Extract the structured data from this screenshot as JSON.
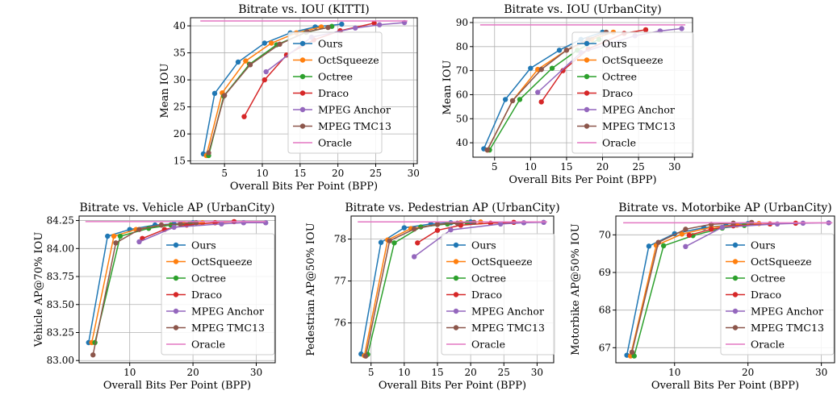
{
  "colors": {
    "Ours": "#1f77b4",
    "OctSqueeze": "#ff7f0e",
    "Octree": "#2ca02c",
    "Draco": "#d62728",
    "MPEG Anchor": "#9467bd",
    "MPEG TMC13": "#8c564b",
    "Oracle": "#e377c2"
  },
  "chart_data": [
    {
      "type": "line",
      "title": "Bitrate vs. IOU (KITTI)",
      "xlabel": "Overall Bits Per Point (BPP)",
      "ylabel": "Mean IOU",
      "xlim": [
        0.5,
        30.5
      ],
      "ylim": [
        14.5,
        41.5
      ],
      "xticks": [
        5,
        10,
        15,
        20,
        25,
        30
      ],
      "yticks": [
        15,
        20,
        25,
        30,
        35,
        40
      ],
      "yticklabels": [
        "15",
        "20",
        "25",
        "30",
        "35",
        "40"
      ],
      "grid": true,
      "legend": "lower-right",
      "series": [
        {
          "name": "Ours",
          "x": [
            2.2,
            3.7,
            6.8,
            10.3,
            13.7,
            17.0,
            20.5
          ],
          "y": [
            16.3,
            27.5,
            33.3,
            36.8,
            38.7,
            39.8,
            40.3
          ]
        },
        {
          "name": "OctSqueeze",
          "x": [
            2.6,
            4.7,
            7.8,
            11.2,
            14.5,
            17.8
          ],
          "y": [
            16.0,
            27.6,
            33.5,
            36.8,
            38.7,
            39.8
          ]
        },
        {
          "name": "Octree",
          "x": [
            2.9,
            4.9,
            8.3,
            11.9,
            15.8,
            19.2
          ],
          "y": [
            16.0,
            27.0,
            32.9,
            36.5,
            38.8,
            39.9
          ]
        },
        {
          "name": "Draco",
          "x": [
            7.6,
            10.3,
            13.2,
            16.8,
            20.3,
            24.8
          ],
          "y": [
            23.2,
            30.0,
            34.6,
            37.4,
            39.1,
            40.5
          ]
        },
        {
          "name": "MPEG Anchor",
          "x": [
            10.5,
            16.5,
            22.3,
            25.5,
            28.8
          ],
          "y": [
            31.5,
            37.9,
            39.6,
            40.2,
            40.6
          ]
        },
        {
          "name": "MPEG TMC13",
          "x": [
            2.9,
            5.0,
            8.4,
            12.3,
            15.9,
            18.7
          ],
          "y": [
            16.5,
            27.1,
            32.8,
            36.6,
            38.9,
            39.7
          ]
        },
        {
          "name": "Oracle",
          "x": [
            1.8,
            29.2
          ],
          "y": [
            40.9,
            40.9
          ],
          "markers": false
        }
      ]
    },
    {
      "type": "line",
      "title": "Bitrate vs. IOU (UrbanCity)",
      "xlabel": "Overall Bits Per Point (BPP)",
      "ylabel": "Mean IOU",
      "xlim": [
        2.0,
        32.5
      ],
      "ylim": [
        34.0,
        92.0
      ],
      "xticks": [
        5,
        10,
        15,
        20,
        25,
        30
      ],
      "yticks": [
        40,
        50,
        60,
        70,
        80,
        90
      ],
      "yticklabels": [
        "40",
        "50",
        "60",
        "70",
        "80",
        "90"
      ],
      "grid": true,
      "legend": "lower-right",
      "series": [
        {
          "name": "Ours",
          "x": [
            3.5,
            6.5,
            10.0,
            14.0,
            17.0,
            20.0
          ],
          "y": [
            37.5,
            58.0,
            71.0,
            78.5,
            83.0,
            86.0
          ]
        },
        {
          "name": "OctSqueeze",
          "x": [
            4.0,
            7.5,
            11.0,
            15.0,
            18.5,
            21.5
          ],
          "y": [
            37.0,
            57.5,
            70.5,
            78.5,
            83.0,
            86.0
          ]
        },
        {
          "name": "Octree",
          "x": [
            4.3,
            8.5,
            13.0,
            16.5,
            19.5
          ],
          "y": [
            37.0,
            58.0,
            71.0,
            78.5,
            83.0
          ]
        },
        {
          "name": "Draco",
          "x": [
            11.5,
            14.5,
            18.0,
            23.0,
            26.0
          ],
          "y": [
            57.0,
            70.0,
            79.0,
            85.5,
            87.0
          ]
        },
        {
          "name": "MPEG Anchor",
          "x": [
            11.0,
            17.0,
            24.5,
            28.0,
            31.0
          ],
          "y": [
            61.0,
            77.5,
            84.5,
            86.5,
            87.5
          ]
        },
        {
          "name": "MPEG TMC13",
          "x": [
            4.0,
            7.5,
            11.5,
            15.0,
            18.0,
            20.5
          ],
          "y": [
            37.0,
            57.5,
            70.5,
            78.5,
            83.0,
            86.0
          ]
        },
        {
          "name": "Oracle",
          "x": [
            3.0,
            31.5
          ],
          "y": [
            89.0,
            89.0
          ],
          "markers": false
        }
      ]
    },
    {
      "type": "line",
      "title": "Bitrate vs. Vehicle AP (UrbanCity)",
      "xlabel": "Overall Bits Per Point (BPP)",
      "ylabel": "Vehicle AP@70% IOU",
      "xlim": [
        2.0,
        33.0
      ],
      "ylim": [
        82.98,
        84.29
      ],
      "xticks": [
        10,
        20,
        30
      ],
      "yticks": [
        83.0,
        83.25,
        83.5,
        83.75,
        84.0,
        84.25
      ],
      "yticklabels": [
        "83.00",
        "83.25",
        "83.50",
        "83.75",
        "84.00",
        "84.25"
      ],
      "grid": true,
      "legend": "lower-right",
      "series": [
        {
          "name": "Ours",
          "x": [
            3.5,
            6.5,
            10.0,
            14.0,
            17.0,
            20.0
          ],
          "y": [
            83.16,
            84.11,
            84.17,
            84.21,
            84.22,
            84.23
          ]
        },
        {
          "name": "OctSqueeze",
          "x": [
            4.0,
            7.5,
            11.0,
            15.0,
            18.5,
            21.5
          ],
          "y": [
            83.16,
            84.11,
            84.17,
            84.21,
            84.22,
            84.23
          ]
        },
        {
          "name": "Octree",
          "x": [
            4.5,
            8.5,
            13.0,
            16.5,
            19.5
          ],
          "y": [
            83.16,
            84.11,
            84.18,
            84.21,
            84.22
          ]
        },
        {
          "name": "Draco",
          "x": [
            12.0,
            15.5,
            19.0,
            23.5,
            26.5
          ],
          "y": [
            84.09,
            84.17,
            84.21,
            84.23,
            84.24
          ]
        },
        {
          "name": "MPEG Anchor",
          "x": [
            11.5,
            17.0,
            24.5,
            28.0,
            31.5
          ],
          "y": [
            84.06,
            84.19,
            84.22,
            84.23,
            84.23
          ]
        },
        {
          "name": "MPEG TMC13",
          "x": [
            4.2,
            7.8,
            11.5,
            15.0,
            18.0,
            20.5
          ],
          "y": [
            83.05,
            84.05,
            84.17,
            84.21,
            84.22,
            84.23
          ]
        },
        {
          "name": "Oracle",
          "x": [
            3.0,
            31.5
          ],
          "y": [
            84.24,
            84.24
          ],
          "markers": false
        }
      ]
    },
    {
      "type": "line",
      "title": "Bitrate vs. Pedestrian AP (UrbanCity)",
      "xlabel": "Overall Bits Per Point (BPP)",
      "ylabel": "Pedestrian AP@50% IOU",
      "xlim": [
        2.0,
        32.5
      ],
      "ylim": [
        75.05,
        78.55
      ],
      "xticks": [
        5,
        10,
        15,
        20,
        25,
        30
      ],
      "yticks": [
        76,
        77,
        78
      ],
      "yticklabels": [
        "76",
        "77",
        "78"
      ],
      "grid": true,
      "legend": "lower-right",
      "series": [
        {
          "name": "Ours",
          "x": [
            3.5,
            6.5,
            10.0,
            14.0,
            17.0,
            20.0
          ],
          "y": [
            75.26,
            77.92,
            78.27,
            78.36,
            78.39,
            78.41
          ]
        },
        {
          "name": "OctSqueeze",
          "x": [
            4.0,
            7.5,
            11.0,
            15.0,
            18.5,
            21.5
          ],
          "y": [
            75.22,
            77.98,
            78.25,
            78.35,
            78.39,
            78.41
          ]
        },
        {
          "name": "Octree",
          "x": [
            4.5,
            8.5,
            12.5,
            16.5,
            19.5
          ],
          "y": [
            75.25,
            77.91,
            78.29,
            78.36,
            78.39
          ]
        },
        {
          "name": "Draco",
          "x": [
            12.0,
            15.0,
            18.5,
            23.0,
            26.5
          ],
          "y": [
            77.91,
            78.21,
            78.33,
            78.38,
            78.4
          ]
        },
        {
          "name": "MPEG Anchor",
          "x": [
            11.5,
            17.0,
            24.5,
            28.0,
            31.0
          ],
          "y": [
            77.58,
            78.22,
            78.36,
            78.39,
            78.4
          ]
        },
        {
          "name": "MPEG TMC13",
          "x": [
            4.2,
            7.8,
            11.5,
            15.0,
            18.0,
            20.5
          ],
          "y": [
            75.21,
            77.96,
            78.24,
            78.35,
            78.38,
            78.4
          ]
        },
        {
          "name": "Oracle",
          "x": [
            3.0,
            31.5
          ],
          "y": [
            78.41,
            78.41
          ],
          "markers": false
        }
      ]
    },
    {
      "type": "line",
      "title": "Bitrate vs. Motorbike AP (UrbanCity)",
      "xlabel": "Overall Bits Per Point (BPP)",
      "ylabel": "Motorbike AP@50% IOU",
      "xlim": [
        2.0,
        31.8
      ],
      "ylim": [
        66.6,
        70.5
      ],
      "xticks": [
        10,
        20,
        30
      ],
      "yticks": [
        67,
        68,
        69,
        70
      ],
      "yticklabels": [
        "67",
        "68",
        "69",
        "70"
      ],
      "grid": true,
      "legend": "lower-right",
      "series": [
        {
          "name": "Ours",
          "x": [
            3.5,
            6.5,
            10.0,
            14.0,
            17.0,
            20.0
          ],
          "y": [
            66.8,
            69.7,
            70.03,
            70.19,
            70.25,
            70.3
          ]
        },
        {
          "name": "OctSqueeze",
          "x": [
            4.0,
            7.5,
            11.0,
            15.0,
            18.5,
            21.5
          ],
          "y": [
            66.78,
            69.72,
            70.02,
            70.2,
            70.26,
            70.3
          ]
        },
        {
          "name": "Octree",
          "x": [
            4.5,
            8.5,
            12.5,
            16.5,
            19.5
          ],
          "y": [
            66.78,
            69.71,
            69.98,
            70.18,
            70.25
          ]
        },
        {
          "name": "Draco",
          "x": [
            12.0,
            15.0,
            18.0,
            23.0,
            26.5
          ],
          "y": [
            69.99,
            70.15,
            70.24,
            70.29,
            70.31
          ]
        },
        {
          "name": "MPEG Anchor",
          "x": [
            11.5,
            16.5,
            24.0,
            27.5,
            31.0
          ],
          "y": [
            69.69,
            70.2,
            70.29,
            70.31,
            70.32
          ]
        },
        {
          "name": "MPEG TMC13",
          "x": [
            4.2,
            7.8,
            11.5,
            15.0,
            18.0,
            20.5
          ],
          "y": [
            66.88,
            69.8,
            70.15,
            70.28,
            70.31,
            70.33
          ]
        },
        {
          "name": "Oracle",
          "x": [
            3.0,
            31.5
          ],
          "y": [
            70.32,
            70.32
          ],
          "markers": false
        }
      ]
    }
  ]
}
